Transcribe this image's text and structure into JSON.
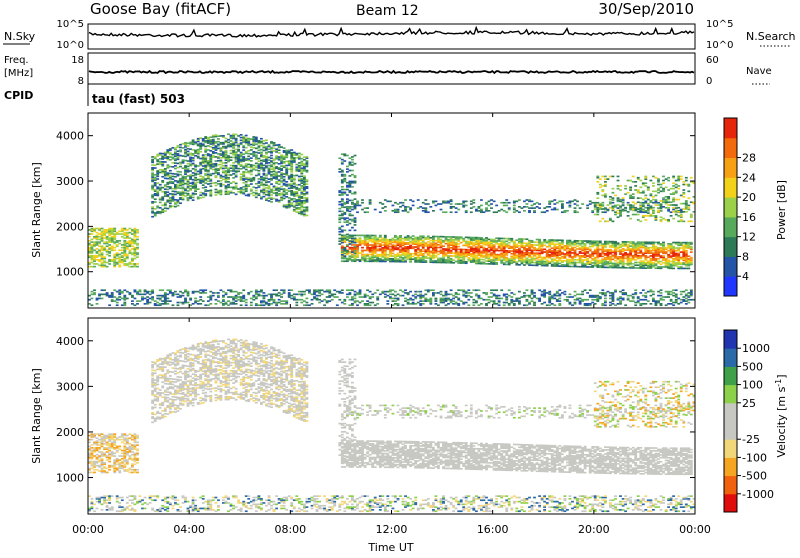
{
  "header": {
    "station": "Goose Bay (fitACF)",
    "beam": "Beam 12",
    "date": "30/Sep/2010"
  },
  "noise_panel": {
    "left_label": "N.Sky",
    "left_ticks": [
      "10^5",
      "10^0"
    ],
    "right_ticks": [
      "10^5",
      "10^0"
    ],
    "right_label": "N.Search"
  },
  "freq_panel": {
    "left_label_1": "Freq.",
    "left_label_2": "[MHz]",
    "left_ticks": [
      "18",
      "8"
    ],
    "right_ticks": [
      "60",
      "0"
    ],
    "right_label": "Nave"
  },
  "cpid": {
    "label": "CPID",
    "mode": "tau (fast) 503"
  },
  "chart_data": [
    {
      "type": "heatmap",
      "name": "power",
      "ylabel": "Slant Range [km]",
      "yticks": [
        "1000",
        "2000",
        "3000",
        "4000"
      ],
      "ylim": [
        200,
        4500
      ],
      "colorbar_label": "Power [dB]",
      "colorbar_ticks": [
        "4",
        "8",
        "12",
        "16",
        "20",
        "24",
        "28"
      ],
      "colors": [
        "#1f37ff",
        "#2454a8",
        "#2d7a58",
        "#57a95c",
        "#9bd04a",
        "#f2d11b",
        "#f7a014",
        "#f26a0c",
        "#e5260b"
      ]
    },
    {
      "type": "heatmap",
      "name": "velocity",
      "ylabel": "Slant Range [km]",
      "yticks": [
        "1000",
        "2000",
        "3000",
        "4000"
      ],
      "ylim": [
        200,
        4500
      ],
      "colorbar_label": "Velocity [m s",
      "colorbar_label_sup": "-1",
      "colorbar_label_end": "]",
      "colorbar_ticks": [
        "-1000",
        "-500",
        "-100",
        "-25",
        "25",
        "100",
        "500",
        "1000"
      ],
      "colors": [
        "#e00d0d",
        "#f0620d",
        "#f5a521",
        "#f2d77a",
        "#c8c8c3",
        "#c8c8c3",
        "#8dd04a",
        "#3fa04a",
        "#2a6aa8",
        "#2235b0"
      ]
    }
  ],
  "xaxis": {
    "ticks": [
      "00:00",
      "04:00",
      "08:00",
      "12:00",
      "16:00",
      "20:00",
      "00:00"
    ],
    "label": "Time UT"
  }
}
